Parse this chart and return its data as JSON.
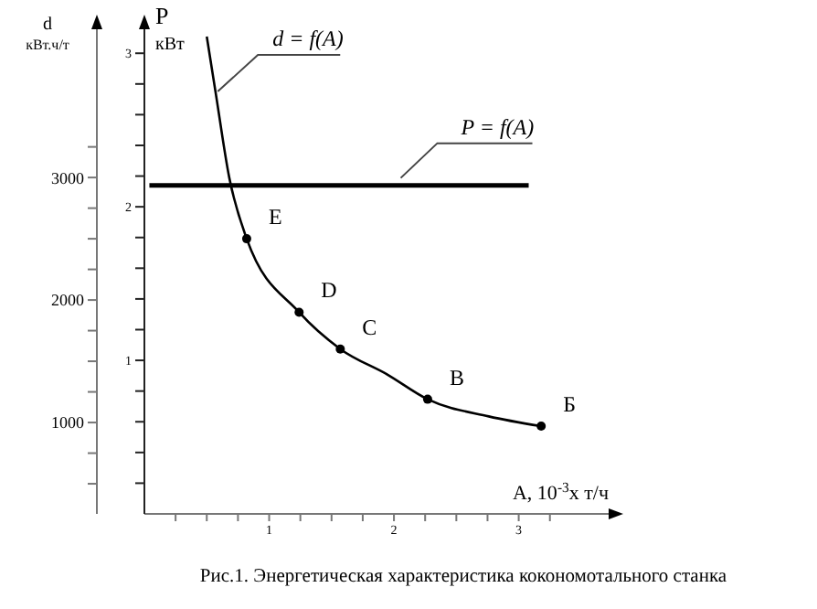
{
  "chart_data": {
    "type": "line",
    "title": "Рис.1. Энергетическая характеристика кокономотального станка",
    "xlabel": "A, 10$^{-3}$x т/ч",
    "ylabel": "d\nкВт.ч/т",
    "y2label": "P\nкВт",
    "xlim": [
      0,
      3.75
    ],
    "xticks": [
      {
        "value": 0.25,
        "label": null
      },
      {
        "value": 0.5,
        "label": null
      },
      {
        "value": 0.75,
        "label": null
      },
      1,
      {
        "value": 1.25,
        "label": null
      },
      {
        "value": 1.5,
        "label": null
      },
      {
        "value": 1.75,
        "label": null
      },
      2,
      {
        "value": 2.25,
        "label": null
      },
      {
        "value": 2.5,
        "label": null
      },
      {
        "value": 2.75,
        "label": null
      },
      3,
      {
        "value": 3.25,
        "label": null
      }
    ],
    "ylim": [
      254,
      4240
    ],
    "yticks": [
      {
        "value": 500,
        "label": null
      },
      {
        "value": 750,
        "label": null
      },
      1000,
      {
        "value": 1250,
        "label": null
      },
      {
        "value": 1500,
        "label": null
      },
      {
        "value": 1750,
        "label": null
      },
      2000,
      {
        "value": 2250,
        "label": null
      },
      {
        "value": 2500,
        "label": null
      },
      {
        "value": 2750,
        "label": null
      },
      3000,
      {
        "value": 3250,
        "label": null
      }
    ],
    "y2lim": [
      0,
      3.18
    ],
    "y2ticks": [
      {
        "value": 0.2,
        "label": null
      },
      {
        "value": 0.4,
        "label": null
      },
      {
        "value": 0.6,
        "label": null
      },
      {
        "value": 0.8,
        "label": null
      },
      1,
      {
        "value": 1.2,
        "label": null
      },
      {
        "value": 1.4,
        "label": null
      },
      {
        "value": 1.6,
        "label": null
      },
      {
        "value": 1.8,
        "label": null
      },
      2,
      {
        "value": 2.2,
        "label": null
      },
      {
        "value": 2.4,
        "label": null
      },
      {
        "value": 2.6,
        "label": null
      },
      {
        "value": 2.8,
        "label": null
      },
      3
    ],
    "marker": "circle",
    "line_style": "solid",
    "series": [
      {
        "name": "d = f(A)",
        "color": "#000000",
        "x": [
          0.5,
          0.57,
          0.68,
          0.82,
          1.24,
          1.57,
          1.95,
          2.27,
          2.76,
          3.18
        ],
        "values": [
          4150,
          3700,
          3000,
          2500,
          1900,
          1600,
          1390,
          1190,
          1050,
          970
        ],
        "value_labels": [
          null,
          null,
          null,
          "E",
          "D",
          "C",
          null,
          "B",
          null,
          "Б"
        ]
      },
      {
        "name": "P = f(A)",
        "color": "#000000",
        "axis": "y2",
        "marker": "none",
        "x": [
          0.04,
          3.08
        ],
        "values": [
          2.14,
          2.14
        ]
      }
    ]
  }
}
